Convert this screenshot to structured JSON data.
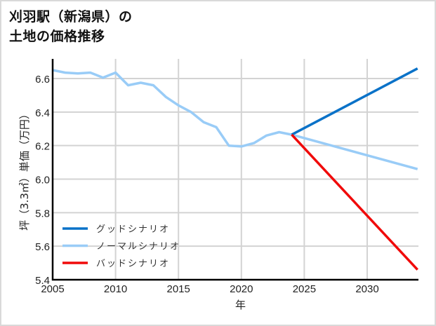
{
  "title_line1": "刈羽駅（新潟県）の",
  "title_line2": "土地の価格推移",
  "chart_data": {
    "type": "line",
    "title": "刈羽駅（新潟県）の土地の価格推移",
    "xlabel": "年",
    "ylabel": "坪（3.3㎡）単価（万円）",
    "xlim": [
      2005,
      2034
    ],
    "ylim": [
      5.4,
      6.72
    ],
    "x_ticks": [
      "2005",
      "2010",
      "2015",
      "2020",
      "2025",
      "2030"
    ],
    "y_ticks": [
      "5.4",
      "5.6",
      "5.8",
      "6.0",
      "6.2",
      "6.4",
      "6.6"
    ],
    "grid": true,
    "legend_position": "lower left",
    "series": [
      {
        "name": "グッドシナリオ",
        "color": "#0a72c8",
        "x": [
          2024,
          2034
        ],
        "values": [
          6.265,
          6.66
        ]
      },
      {
        "name": "ノーマルシナリオ",
        "color": "#99ccf7",
        "x": [
          2005,
          2006,
          2007,
          2008,
          2009,
          2010,
          2011,
          2012,
          2013,
          2014,
          2015,
          2016,
          2017,
          2018,
          2019,
          2020,
          2021,
          2022,
          2023,
          2024,
          2034
        ],
        "values": [
          6.65,
          6.635,
          6.63,
          6.635,
          6.605,
          6.635,
          6.56,
          6.575,
          6.56,
          6.49,
          6.44,
          6.4,
          6.34,
          6.31,
          6.2,
          6.195,
          6.215,
          6.26,
          6.28,
          6.265,
          6.06
        ]
      },
      {
        "name": "バッドシナリオ",
        "color": "#f00a0a",
        "x": [
          2024,
          2034
        ],
        "values": [
          6.265,
          5.46
        ]
      }
    ]
  }
}
